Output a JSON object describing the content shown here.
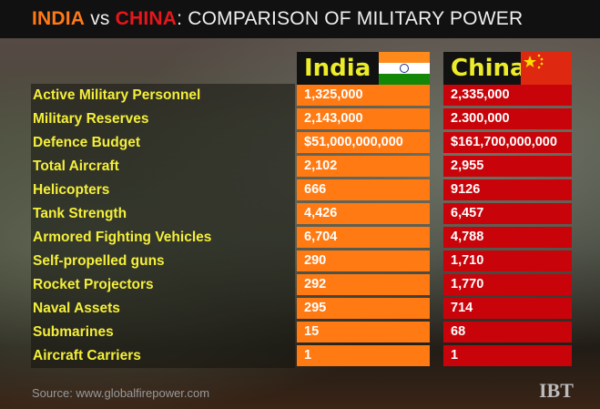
{
  "title": {
    "part1": "INDIA",
    "part2": " vs ",
    "part3": "CHINA",
    "part4": ": COMPARISON OF MILITARY POWER"
  },
  "colors": {
    "india": "#ff7a13",
    "china": "#c8040a",
    "label": "#f4ef3a"
  },
  "headers": {
    "india": "India",
    "china": "China"
  },
  "chart_data": {
    "type": "table",
    "columns": [
      "India",
      "China"
    ],
    "rows": [
      {
        "label": "Active Military Personnel",
        "india": "1,325,000",
        "china": "2,335,000"
      },
      {
        "label": "Military Reserves",
        "india": "2,143,000",
        "china": "2.300,000"
      },
      {
        "label": "Defence Budget",
        "india": "$51,000,000,000",
        "china": "$161,700,000,000"
      },
      {
        "label": "Total Aircraft",
        "india": "2,102",
        "china": "2,955"
      },
      {
        "label": "Helicopters",
        "india": "666",
        "china": "9126"
      },
      {
        "label": "Tank Strength",
        "india": "4,426",
        "china": "6,457"
      },
      {
        "label": "Armored Fighting Vehicles",
        "india": "6,704",
        "china": "4,788"
      },
      {
        "label": "Self-propelled guns",
        "india": "290",
        "china": "1,710"
      },
      {
        "label": "Rocket Projectors",
        "india": "292",
        "china": "1,770"
      },
      {
        "label": "Naval Assets",
        "india": "295",
        "china": "714"
      },
      {
        "label": "Submarines",
        "india": "15",
        "china": "68"
      },
      {
        "label": "Aircraft Carriers",
        "india": "1",
        "china": "1"
      }
    ]
  },
  "source": "Source: www.globalfirepower.com",
  "logo": "IBT"
}
